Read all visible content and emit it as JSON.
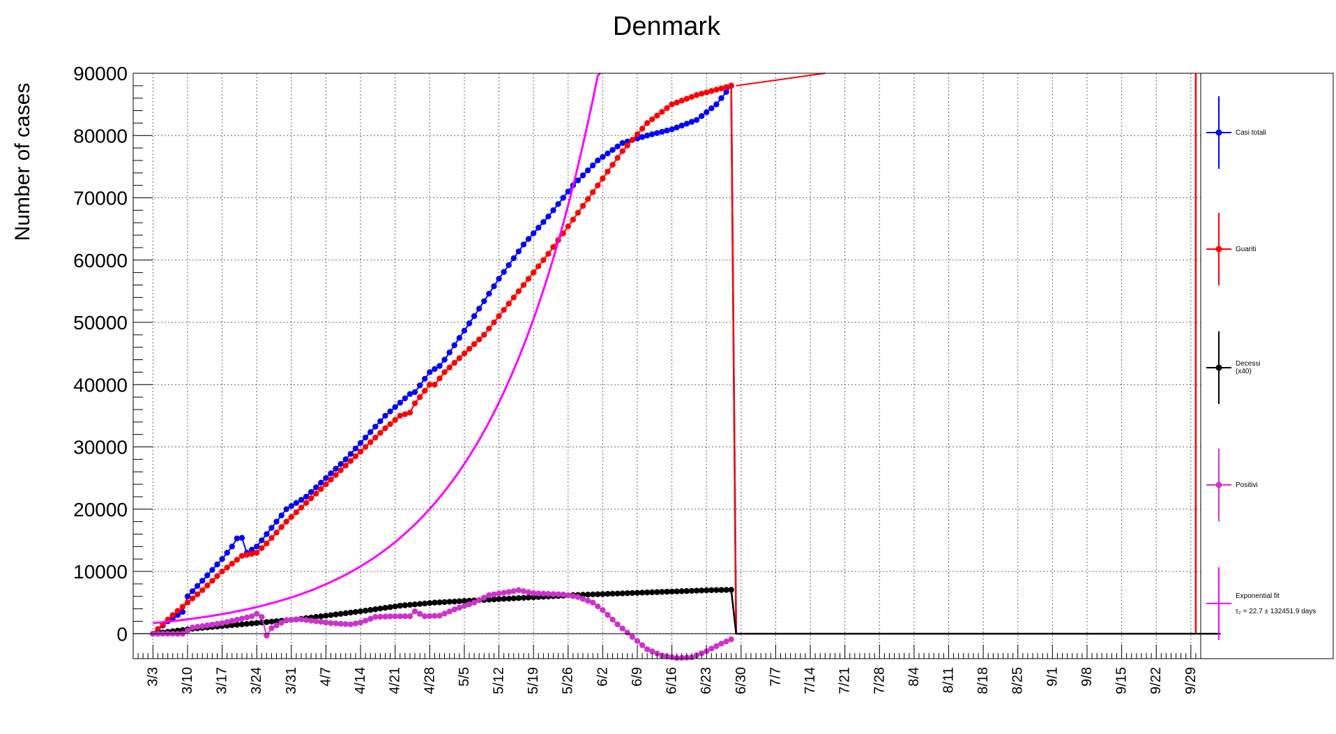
{
  "chart_data": {
    "type": "line",
    "title": "Denmark",
    "ylabel": "Number of cases",
    "xlabel": "",
    "ylim": [
      -4000,
      90000
    ],
    "y_ticks": [
      0,
      10000,
      20000,
      30000,
      40000,
      50000,
      60000,
      70000,
      80000,
      90000
    ],
    "x_tick_labels": [
      "3/3",
      "3/10",
      "3/17",
      "3/24",
      "3/31",
      "4/7",
      "4/14",
      "4/21",
      "4/28",
      "5/5",
      "5/12",
      "5/19",
      "5/26",
      "6/2",
      "6/9",
      "6/16",
      "6/23",
      "6/30",
      "7/7",
      "7/14",
      "7/21",
      "7/28",
      "8/4",
      "8/11",
      "8/18",
      "8/25",
      "9/1",
      "9/8",
      "9/15",
      "9/22",
      "9/29"
    ],
    "x_day_range": [
      -4,
      212
    ],
    "grid": true,
    "legend_position": "right",
    "series": [
      {
        "name": "Casi totali",
        "color": "#0000ff",
        "marker": "circle",
        "points": [
          [
            0,
            0
          ],
          [
            3,
            2000
          ],
          [
            6,
            3500
          ],
          [
            7,
            6000
          ],
          [
            10,
            8500
          ],
          [
            14,
            12000
          ],
          [
            16,
            14000
          ],
          [
            17,
            15300
          ],
          [
            18,
            15400
          ],
          [
            19,
            13000
          ],
          [
            21,
            14000
          ],
          [
            24,
            17000
          ],
          [
            27,
            20000
          ],
          [
            31,
            22000
          ],
          [
            35,
            25000
          ],
          [
            39,
            28000
          ],
          [
            43,
            31500
          ],
          [
            47,
            35000
          ],
          [
            52,
            38500
          ],
          [
            53,
            38800
          ],
          [
            56,
            42000
          ],
          [
            58,
            43000
          ],
          [
            59,
            44000
          ],
          [
            65,
            51000
          ],
          [
            70,
            57000
          ],
          [
            75,
            62500
          ],
          [
            80,
            67000
          ],
          [
            85,
            72000
          ],
          [
            90,
            76000
          ],
          [
            95,
            78800
          ],
          [
            100,
            80000
          ],
          [
            105,
            81000
          ],
          [
            110,
            82500
          ],
          [
            114,
            85000
          ],
          [
            117,
            88000
          ]
        ],
        "tail": {
          "from_day": 118,
          "to_day": 216,
          "value": 0
        }
      },
      {
        "name": "Guariti",
        "color": "#ff0000",
        "marker": "circle",
        "points": [
          [
            0,
            0
          ],
          [
            4,
            3000
          ],
          [
            7,
            5000
          ],
          [
            10,
            7000
          ],
          [
            14,
            10000
          ],
          [
            18,
            12500
          ],
          [
            21,
            13000
          ],
          [
            23,
            14500
          ],
          [
            27,
            18000
          ],
          [
            31,
            21000
          ],
          [
            35,
            24000
          ],
          [
            39,
            27000
          ],
          [
            43,
            30000
          ],
          [
            47,
            33000
          ],
          [
            50,
            35000
          ],
          [
            52,
            35500
          ],
          [
            53,
            37000
          ],
          [
            56,
            40000
          ],
          [
            57,
            40000
          ],
          [
            59,
            42000
          ],
          [
            63,
            45000
          ],
          [
            67,
            48000
          ],
          [
            71,
            52000
          ],
          [
            75,
            56000
          ],
          [
            80,
            61000
          ],
          [
            85,
            66500
          ],
          [
            90,
            72000
          ],
          [
            95,
            77500
          ],
          [
            100,
            82000
          ],
          [
            105,
            85000
          ],
          [
            110,
            86500
          ],
          [
            117,
            88000
          ]
        ],
        "tail": {
          "from_day": 118,
          "to_day": 211,
          "value": 0
        },
        "continuation": [
          [
            118,
            88000
          ],
          [
            136,
            91000
          ]
        ]
      },
      {
        "name": "Decessi\n(x40)",
        "color": "#000000",
        "marker": "circle",
        "points": [
          [
            0,
            0
          ],
          [
            8,
            800
          ],
          [
            15,
            1300
          ],
          [
            22,
            1800
          ],
          [
            29,
            2300
          ],
          [
            36,
            3000
          ],
          [
            43,
            3700
          ],
          [
            50,
            4500
          ],
          [
            57,
            5000
          ],
          [
            64,
            5300
          ],
          [
            71,
            5600
          ],
          [
            78,
            5900
          ],
          [
            85,
            6200
          ],
          [
            92,
            6400
          ],
          [
            99,
            6600
          ],
          [
            106,
            6800
          ],
          [
            113,
            7000
          ],
          [
            117,
            7050
          ]
        ],
        "tail": {
          "from_day": 118,
          "to_day": 216,
          "value": 0
        }
      },
      {
        "name": "Positivi",
        "color": "#cc33cc",
        "marker": "circle",
        "points": [
          [
            0,
            0
          ],
          [
            6,
            0
          ],
          [
            8,
            1000
          ],
          [
            14,
            1700
          ],
          [
            20,
            2800
          ],
          [
            21,
            3200
          ],
          [
            22,
            2700
          ],
          [
            23,
            -300
          ],
          [
            24,
            900
          ],
          [
            27,
            2200
          ],
          [
            30,
            2300
          ],
          [
            33,
            2000
          ],
          [
            36,
            1700
          ],
          [
            40,
            1500
          ],
          [
            42,
            1800
          ],
          [
            45,
            2700
          ],
          [
            49,
            2800
          ],
          [
            52,
            2800
          ],
          [
            53,
            3600
          ],
          [
            55,
            2800
          ],
          [
            58,
            2900
          ],
          [
            61,
            3900
          ],
          [
            65,
            5000
          ],
          [
            68,
            6200
          ],
          [
            72,
            6700
          ],
          [
            74,
            7000
          ],
          [
            77,
            6500
          ],
          [
            80,
            6400
          ],
          [
            83,
            6300
          ],
          [
            86,
            5900
          ],
          [
            89,
            5000
          ],
          [
            91,
            3800
          ],
          [
            94,
            1500
          ],
          [
            97,
            -500
          ],
          [
            100,
            -2500
          ],
          [
            103,
            -3500
          ],
          [
            106,
            -3900
          ],
          [
            109,
            -3800
          ],
          [
            112,
            -2800
          ],
          [
            115,
            -1600
          ],
          [
            117,
            -900
          ]
        ]
      },
      {
        "name": "Exponential fit",
        "color": "#ff00ff",
        "marker": "line",
        "fit": {
          "a": 1700,
          "tau": 22.7,
          "from_day": 0,
          "to_day": 117
        }
      }
    ],
    "legend_fit_label": "τ₂ = 22.7  ± 132451.9 days"
  }
}
